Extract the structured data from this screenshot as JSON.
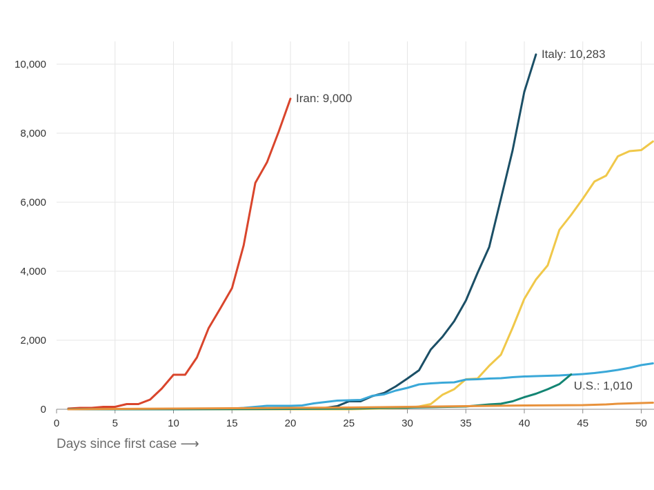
{
  "chart_data": {
    "type": "line",
    "xlabel": "Days since first case ⟶",
    "ylabel": "",
    "xlim": [
      0,
      51
    ],
    "ylim": [
      0,
      10000
    ],
    "x_ticks": [
      0,
      5,
      10,
      15,
      20,
      25,
      30,
      35,
      40,
      45,
      50
    ],
    "x_tick_labels": [
      "0",
      "5",
      "10",
      "15",
      "20",
      "25",
      "30",
      "35",
      "40",
      "45",
      "50"
    ],
    "y_ticks": [
      0,
      2000,
      4000,
      6000,
      8000,
      10000
    ],
    "y_tick_labels": [
      "0",
      "2,000",
      "4,000",
      "6,000",
      "8,000",
      "10,000"
    ],
    "grid": true,
    "series": [
      {
        "name": "Iran",
        "color": "#d9452c",
        "label": "Iran: 9,000",
        "x": [
          1,
          2,
          3,
          4,
          5,
          6,
          7,
          8,
          9,
          10,
          11,
          12,
          13,
          14,
          15,
          16,
          17,
          18,
          19,
          20
        ],
        "y": [
          20,
          40,
          40,
          70,
          70,
          150,
          150,
          280,
          600,
          1000,
          1000,
          1500,
          2350,
          2920,
          3510,
          4750,
          6560,
          7160,
          8050,
          9000
        ]
      },
      {
        "name": "Italy",
        "color": "#1b4f66",
        "label": "Italy: 10,283",
        "x": [
          1,
          5,
          10,
          15,
          20,
          22,
          23,
          24,
          25,
          26,
          27,
          28,
          29,
          30,
          31,
          32,
          33,
          34,
          35,
          36,
          37,
          38,
          39,
          40,
          41
        ],
        "y": [
          10,
          10,
          10,
          10,
          10,
          20,
          40,
          90,
          230,
          230,
          380,
          470,
          660,
          890,
          1130,
          1730,
          2100,
          2550,
          3150,
          3950,
          4700,
          6100,
          7500,
          9200,
          10283
        ]
      },
      {
        "name": "Series 3",
        "color": "#f0c84a",
        "label": "",
        "x": [
          1,
          5,
          10,
          15,
          20,
          25,
          30,
          31,
          32,
          33,
          34,
          35,
          36,
          37,
          38,
          39,
          40,
          41,
          42,
          43,
          44,
          45,
          46,
          47,
          48,
          49,
          50,
          51
        ],
        "y": [
          0,
          0,
          0,
          0,
          0,
          0,
          40,
          80,
          150,
          420,
          580,
          870,
          890,
          1260,
          1580,
          2360,
          3200,
          3760,
          4170,
          5200,
          5630,
          6100,
          6600,
          6770,
          7330,
          7480,
          7510,
          7760
        ]
      },
      {
        "name": "Series 4",
        "color": "#3aa8d8",
        "label": "",
        "x": [
          1,
          5,
          10,
          15,
          16,
          17,
          18,
          20,
          21,
          22,
          23,
          24,
          25,
          26,
          27,
          28,
          29,
          30,
          31,
          32,
          33,
          34,
          35,
          36,
          37,
          38,
          39,
          40,
          41,
          42,
          43,
          44,
          45,
          46,
          47,
          48,
          49,
          50,
          51
        ],
        "y": [
          0,
          0,
          10,
          20,
          40,
          70,
          100,
          100,
          110,
          170,
          210,
          250,
          260,
          270,
          390,
          430,
          540,
          620,
          720,
          750,
          770,
          780,
          860,
          870,
          890,
          900,
          930,
          950,
          960,
          970,
          980,
          1000,
          1020,
          1050,
          1090,
          1140,
          1200,
          1280,
          1330
        ]
      },
      {
        "name": "U.S.",
        "color": "#138573",
        "label": "U.S.: 1,010",
        "x": [
          1,
          5,
          10,
          20,
          25,
          30,
          35,
          36,
          37,
          38,
          39,
          40,
          41,
          42,
          43,
          44
        ],
        "y": [
          0,
          0,
          0,
          10,
          20,
          50,
          80,
          110,
          140,
          160,
          230,
          350,
          450,
          580,
          730,
          1010
        ]
      },
      {
        "name": "Series 6",
        "color": "#e8923c",
        "label": "",
        "x": [
          1,
          5,
          10,
          15,
          20,
          25,
          30,
          35,
          40,
          45,
          46,
          47,
          48,
          49,
          50,
          51
        ],
        "y": [
          0,
          10,
          20,
          30,
          40,
          50,
          70,
          90,
          110,
          120,
          130,
          140,
          160,
          170,
          180,
          190
        ]
      }
    ]
  }
}
